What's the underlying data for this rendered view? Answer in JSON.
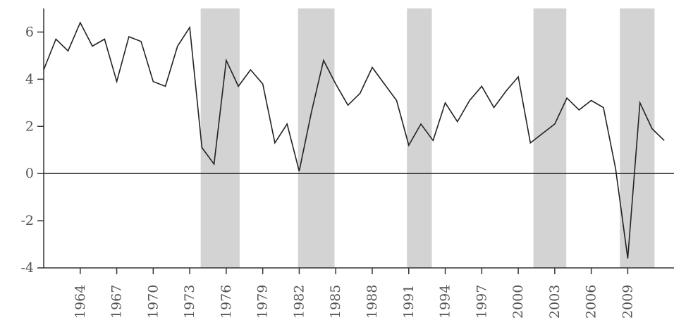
{
  "chart_data": {
    "type": "line",
    "title": "",
    "xlabel": "",
    "ylabel": "",
    "xlim": [
      1961,
      2012.8
    ],
    "ylim": [
      -4,
      7
    ],
    "y_ticks": [
      -4,
      -2,
      0,
      2,
      4,
      6
    ],
    "x_ticks": [
      1964,
      1967,
      1970,
      1973,
      1976,
      1979,
      1982,
      1985,
      1988,
      1991,
      1994,
      1997,
      2000,
      2003,
      2006,
      2009
    ],
    "zero_line": true,
    "grid": false,
    "colors": {
      "line": "#222222",
      "shade": "#d3d3d3",
      "axis": "#333333",
      "text": "#555555"
    },
    "shaded_periods": [
      {
        "start": 1973.9,
        "end": 1977.1
      },
      {
        "start": 1981.9,
        "end": 1984.9
      },
      {
        "start": 1990.85,
        "end": 1992.9
      },
      {
        "start": 2001.25,
        "end": 2003.95
      },
      {
        "start": 2008.35,
        "end": 2011.2
      }
    ],
    "series": [
      {
        "x": [
          1961,
          1962,
          1963,
          1964,
          1965,
          1966,
          1967,
          1968,
          1969,
          1970,
          1971,
          1972,
          1973,
          1974,
          1975,
          1976,
          1977,
          1978,
          1979,
          1980,
          1981,
          1982,
          1983,
          1984,
          1985,
          1986,
          1987,
          1988,
          1989,
          1990,
          1991,
          1992,
          1993,
          1994,
          1995,
          1996,
          1997,
          1998,
          1999,
          2000,
          2001,
          2002,
          2003,
          2004,
          2005,
          2006,
          2007,
          2008,
          2009,
          2010,
          2011,
          2012
        ],
        "values": [
          4.4,
          5.7,
          5.2,
          6.4,
          5.4,
          5.7,
          3.9,
          5.8,
          5.6,
          3.9,
          3.7,
          5.4,
          6.2,
          1.1,
          0.4,
          4.8,
          3.7,
          4.4,
          3.8,
          1.3,
          2.1,
          0.1,
          2.6,
          4.8,
          3.8,
          2.9,
          3.4,
          4.5,
          3.8,
          3.1,
          1.2,
          2.1,
          1.4,
          3.0,
          2.2,
          3.1,
          3.7,
          2.8,
          3.5,
          4.1,
          1.3,
          1.7,
          2.1,
          3.2,
          2.7,
          3.1,
          2.8,
          0.2,
          -3.6,
          3.0,
          1.9,
          1.4
        ]
      }
    ]
  }
}
